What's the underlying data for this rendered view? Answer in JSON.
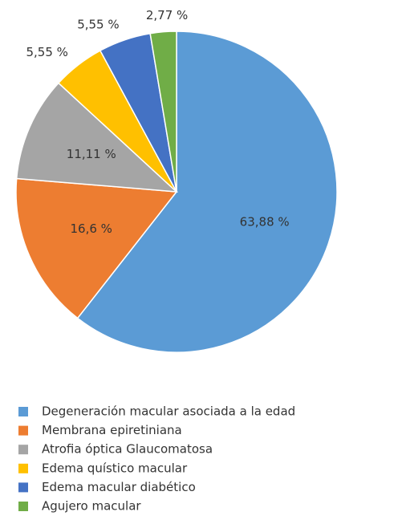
{
  "chart_data": {
    "type": "pie",
    "categories": [
      "Degeneración macular asociada a la edad",
      "Membrana epiretiniana",
      "Atrofia óptica Glaucomatosa",
      "Edema quístico macular",
      "Edema macular diabético",
      "Agujero macular"
    ],
    "values": [
      63.88,
      16.6,
      11.11,
      5.55,
      5.55,
      2.77
    ],
    "value_labels": [
      "63,88 %",
      "16,6 %",
      "11,11 %",
      "5,55 %",
      "5,55 %",
      "2,77 %"
    ],
    "colors": [
      "#5b9bd5",
      "#ed7d31",
      "#a5a5a5",
      "#ffc000",
      "#4472c4",
      "#70ad47"
    ],
    "legend": "bottom"
  }
}
